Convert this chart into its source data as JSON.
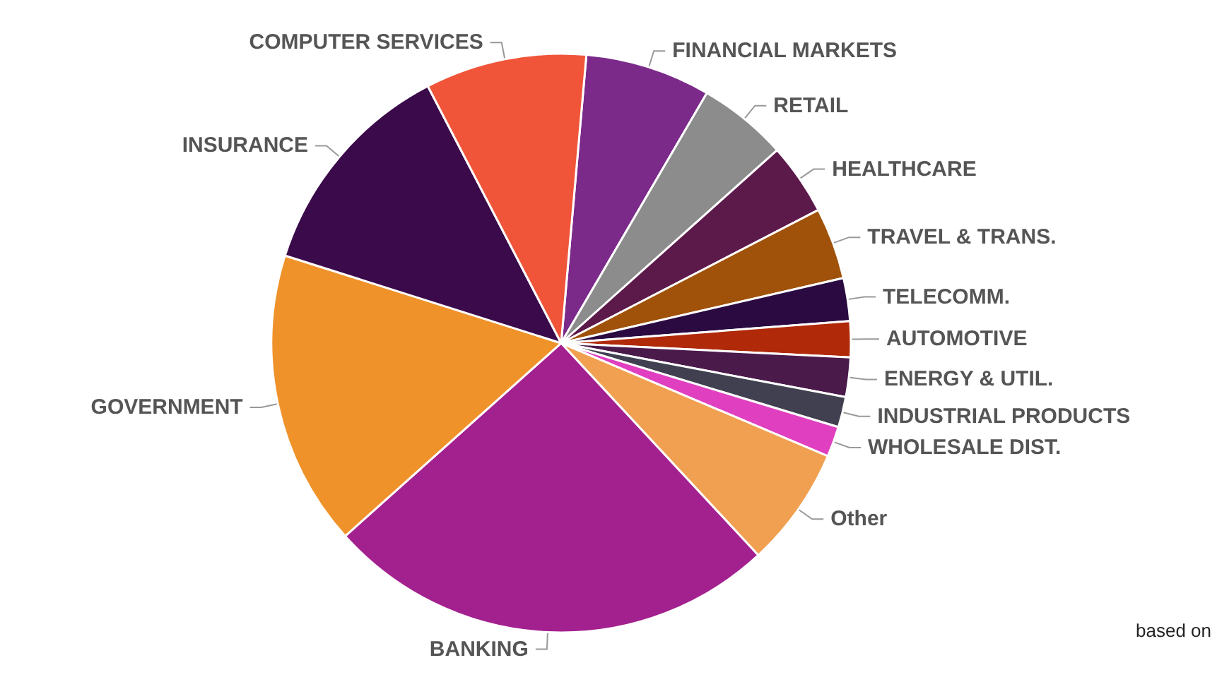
{
  "chart_data": {
    "type": "pie",
    "categories": [
      "FINANCIAL MARKETS",
      "RETAIL",
      "HEALTHCARE",
      "TRAVEL & TRANS.",
      "TELECOMM.",
      "AUTOMOTIVE",
      "ENERGY & UTIL.",
      "INDUSTRIAL PRODUCTS",
      "WHOLESALE DIST.",
      "Other",
      "BANKING",
      "GOVERNMENT",
      "INSURANCE",
      "COMPUTER SERVICES"
    ],
    "values": [
      7,
      5,
      4,
      4,
      2.4,
      2,
      2.2,
      1.7,
      1.7,
      6.7,
      25.3,
      16.5,
      12.5,
      9
    ],
    "colors": [
      "#7b2a8a",
      "#8c8c8c",
      "#5c1a4a",
      "#a0520a",
      "#2a0a40",
      "#b02a0a",
      "#4a1a4a",
      "#404050",
      "#e040c0",
      "#f0a050",
      "#a3208f",
      "#f0922a",
      "#3a0a4a",
      "#f0553a"
    ],
    "annotations": [
      "based on"
    ]
  }
}
